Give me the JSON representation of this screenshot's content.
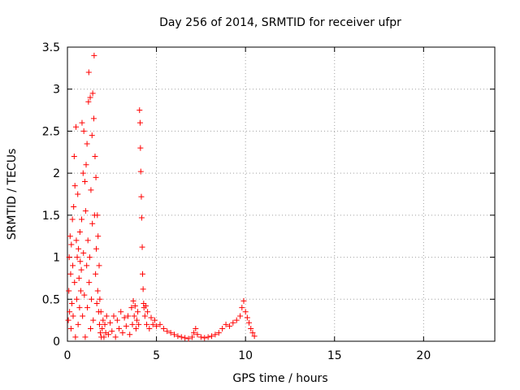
{
  "chart_data": {
    "type": "scatter",
    "title": "Day 256 of 2014, SRMTID for receiver ufpr",
    "xlabel": "GPS time / hours",
    "ylabel": "SRMTID / TECUs",
    "xlim": [
      0,
      24
    ],
    "ylim": [
      0,
      3.5
    ],
    "xticks": [
      0,
      5,
      10,
      15,
      20
    ],
    "xtick_labels": [
      "0",
      "5",
      "10",
      "15",
      "20"
    ],
    "yticks": [
      0,
      0.5,
      1,
      1.5,
      2,
      2.5,
      3,
      3.5
    ],
    "ytick_labels": [
      "0",
      "0.5",
      "1",
      "1.5",
      "2",
      "2.5",
      "3",
      "3.5"
    ],
    "grid": true,
    "marker": "+",
    "color": "#ff0000",
    "series": [
      {
        "name": "SRMTID",
        "points": [
          [
            0.05,
            0.25
          ],
          [
            0.08,
            0.6
          ],
          [
            0.1,
            1.0
          ],
          [
            0.12,
            0.35
          ],
          [
            0.15,
            1.25
          ],
          [
            0.18,
            0.8
          ],
          [
            0.2,
            0.15
          ],
          [
            0.22,
            1.15
          ],
          [
            0.25,
            0.45
          ],
          [
            0.28,
            1.45
          ],
          [
            0.3,
            0.9
          ],
          [
            0.32,
            0.3
          ],
          [
            0.35,
            1.6
          ],
          [
            0.38,
            2.2
          ],
          [
            0.4,
            0.7
          ],
          [
            0.42,
            1.85
          ],
          [
            0.45,
            0.05
          ],
          [
            0.48,
            2.55
          ],
          [
            0.5,
            1.2
          ],
          [
            0.52,
            0.5
          ],
          [
            0.55,
            1.0
          ],
          [
            0.58,
            1.75
          ],
          [
            0.6,
            0.2
          ],
          [
            0.62,
            1.1
          ],
          [
            0.65,
            0.75
          ],
          [
            0.68,
            0.4
          ],
          [
            0.7,
            1.3
          ],
          [
            0.72,
            0.95
          ],
          [
            0.75,
            0.6
          ],
          [
            0.78,
            0.85
          ],
          [
            0.8,
            1.45
          ],
          [
            0.82,
            2.6
          ],
          [
            0.85,
            0.3
          ],
          [
            0.88,
            2.0
          ],
          [
            0.9,
            1.05
          ],
          [
            0.92,
            2.5
          ],
          [
            0.95,
            0.55
          ],
          [
            0.98,
            1.9
          ],
          [
            1.0,
            0.05
          ],
          [
            1.02,
            1.55
          ],
          [
            1.05,
            2.1
          ],
          [
            1.08,
            0.9
          ],
          [
            1.1,
            2.35
          ],
          [
            1.12,
            0.4
          ],
          [
            1.15,
            1.2
          ],
          [
            1.18,
            2.85
          ],
          [
            1.2,
            3.2
          ],
          [
            1.22,
            0.7
          ],
          [
            1.25,
            1.0
          ],
          [
            1.28,
            2.9
          ],
          [
            1.3,
            0.15
          ],
          [
            1.32,
            1.8
          ],
          [
            1.35,
            0.5
          ],
          [
            1.38,
            2.45
          ],
          [
            1.4,
            1.4
          ],
          [
            1.42,
            2.95
          ],
          [
            1.45,
            0.25
          ],
          [
            1.48,
            2.65
          ],
          [
            1.5,
            3.4
          ],
          [
            1.52,
            1.5
          ],
          [
            1.55,
            2.2
          ],
          [
            1.58,
            0.8
          ],
          [
            1.6,
            1.95
          ],
          [
            1.62,
            1.1
          ],
          [
            1.65,
            0.45
          ],
          [
            1.68,
            1.5
          ],
          [
            1.7,
            0.6
          ],
          [
            1.72,
            1.25
          ],
          [
            1.75,
            0.35
          ],
          [
            1.78,
            0.9
          ],
          [
            1.8,
            0.2
          ],
          [
            1.82,
            0.5
          ],
          [
            1.85,
            0.1
          ],
          [
            1.88,
            0.35
          ],
          [
            1.9,
            0.05
          ],
          [
            1.95,
            0.15
          ],
          [
            2.0,
            0.25
          ],
          [
            2.05,
            0.05
          ],
          [
            2.1,
            0.2
          ],
          [
            2.15,
            0.1
          ],
          [
            2.2,
            0.3
          ],
          [
            2.3,
            0.08
          ],
          [
            2.4,
            0.22
          ],
          [
            2.5,
            0.12
          ],
          [
            2.6,
            0.3
          ],
          [
            2.7,
            0.05
          ],
          [
            2.8,
            0.25
          ],
          [
            2.9,
            0.15
          ],
          [
            3.0,
            0.35
          ],
          [
            3.1,
            0.1
          ],
          [
            3.2,
            0.28
          ],
          [
            3.3,
            0.18
          ],
          [
            3.4,
            0.3
          ],
          [
            3.5,
            0.08
          ],
          [
            3.6,
            0.4
          ],
          [
            3.65,
            0.2
          ],
          [
            3.7,
            0.48
          ],
          [
            3.75,
            0.3
          ],
          [
            3.8,
            0.42
          ],
          [
            3.85,
            0.15
          ],
          [
            3.9,
            0.25
          ],
          [
            3.95,
            0.35
          ],
          [
            4.0,
            0.2
          ],
          [
            4.05,
            2.75
          ],
          [
            4.08,
            2.6
          ],
          [
            4.1,
            2.3
          ],
          [
            4.12,
            2.02
          ],
          [
            4.15,
            1.72
          ],
          [
            4.17,
            1.47
          ],
          [
            4.2,
            1.12
          ],
          [
            4.22,
            0.8
          ],
          [
            4.25,
            0.62
          ],
          [
            4.28,
            0.45
          ],
          [
            4.3,
            0.4
          ],
          [
            4.35,
            0.3
          ],
          [
            4.4,
            0.42
          ],
          [
            4.45,
            0.2
          ],
          [
            4.5,
            0.35
          ],
          [
            4.6,
            0.15
          ],
          [
            4.7,
            0.28
          ],
          [
            4.8,
            0.2
          ],
          [
            4.9,
            0.25
          ],
          [
            5.0,
            0.18
          ],
          [
            5.2,
            0.2
          ],
          [
            5.4,
            0.15
          ],
          [
            5.6,
            0.12
          ],
          [
            5.8,
            0.1
          ],
          [
            6.0,
            0.08
          ],
          [
            6.2,
            0.06
          ],
          [
            6.4,
            0.05
          ],
          [
            6.6,
            0.04
          ],
          [
            6.8,
            0.03
          ],
          [
            7.0,
            0.05
          ],
          [
            7.1,
            0.1
          ],
          [
            7.2,
            0.15
          ],
          [
            7.3,
            0.08
          ],
          [
            7.5,
            0.05
          ],
          [
            7.7,
            0.04
          ],
          [
            7.9,
            0.05
          ],
          [
            8.1,
            0.06
          ],
          [
            8.3,
            0.08
          ],
          [
            8.5,
            0.1
          ],
          [
            8.7,
            0.15
          ],
          [
            8.9,
            0.2
          ],
          [
            9.1,
            0.18
          ],
          [
            9.3,
            0.22
          ],
          [
            9.5,
            0.25
          ],
          [
            9.7,
            0.3
          ],
          [
            9.8,
            0.4
          ],
          [
            9.9,
            0.48
          ],
          [
            10.0,
            0.35
          ],
          [
            10.1,
            0.28
          ],
          [
            10.2,
            0.22
          ],
          [
            10.3,
            0.15
          ],
          [
            10.4,
            0.1
          ],
          [
            10.5,
            0.06
          ]
        ]
      }
    ]
  }
}
